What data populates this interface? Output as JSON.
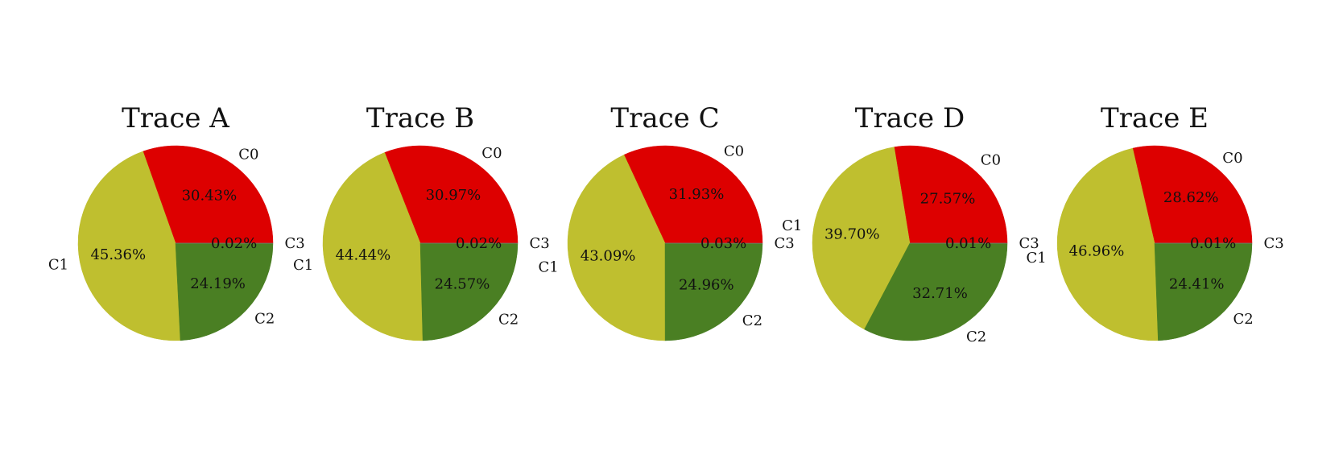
{
  "chart_data": [
    {
      "type": "pie",
      "title": "Trace A",
      "labels": [
        "C0",
        "C1",
        "C2",
        "C3"
      ],
      "values": [
        30.43,
        45.36,
        24.19,
        0.02
      ],
      "value_labels": [
        "30.43%",
        "45.36%",
        "24.19%",
        "0.02%"
      ],
      "colors": [
        "#dd0000",
        "#bfbf2f",
        "#4a7f23",
        "#7a7a7a"
      ]
    },
    {
      "type": "pie",
      "title": "Trace B",
      "labels": [
        "C0",
        "C1",
        "C2",
        "C3"
      ],
      "values": [
        30.97,
        44.44,
        24.57,
        0.02
      ],
      "value_labels": [
        "30.97%",
        "44.44%",
        "24.57%",
        "0.02%"
      ],
      "colors": [
        "#dd0000",
        "#bfbf2f",
        "#4a7f23",
        "#7a7a7a"
      ]
    },
    {
      "type": "pie",
      "title": "Trace C",
      "labels": [
        "C0",
        "C1",
        "C2",
        "C3"
      ],
      "values": [
        31.93,
        43.09,
        24.96,
        0.03
      ],
      "value_labels": [
        "31.93%",
        "43.09%",
        "24.96%",
        "0.03%"
      ],
      "colors": [
        "#dd0000",
        "#bfbf2f",
        "#4a7f23",
        "#7a7a7a"
      ]
    },
    {
      "type": "pie",
      "title": "Trace D",
      "labels": [
        "C0",
        "C1",
        "C2",
        "C3"
      ],
      "values": [
        27.57,
        39.7,
        32.71,
        0.01
      ],
      "value_labels": [
        "27.57%",
        "39.70%",
        "32.71%",
        "0.01%"
      ],
      "colors": [
        "#dd0000",
        "#bfbf2f",
        "#4a7f23",
        "#7a7a7a"
      ]
    },
    {
      "type": "pie",
      "title": "Trace E",
      "labels": [
        "C0",
        "C1",
        "C2",
        "C3"
      ],
      "values": [
        28.62,
        46.96,
        24.41,
        0.01
      ],
      "value_labels": [
        "28.62%",
        "46.96%",
        "24.41%",
        "0.01%"
      ],
      "colors": [
        "#dd0000",
        "#bfbf2f",
        "#4a7f23",
        "#7a7a7a"
      ]
    }
  ]
}
